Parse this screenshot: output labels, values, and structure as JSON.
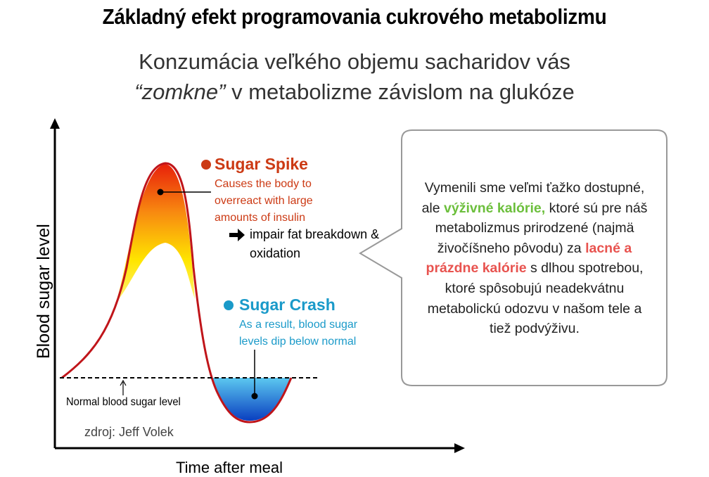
{
  "title": "Základný efekt  programovania cukrového metabolizmu",
  "subtitle": {
    "line1": "Konzumácia veľkého objemu sacharidov vás",
    "line2_quoted": "“zomkne”",
    "line2_rest": " v metabolizme závislom na glukóze"
  },
  "axes": {
    "y_label": "Blood sugar level",
    "x_label": "Time after meal"
  },
  "spike": {
    "heading": "Sugar Spike",
    "lines": [
      "Causes the body to",
      "overreact with large",
      "amounts of insulin"
    ],
    "effect_lines": [
      "impair fat breakdown &",
      "oxidation"
    ],
    "color": "#cc3a14"
  },
  "crash": {
    "heading": "Sugar Crash",
    "lines": [
      "As a result, blood sugar",
      "levels dip below normal"
    ],
    "color": "#1a9ac9"
  },
  "normal_label": "Normal blood sugar level",
  "source": "zdroj: Jeff Volek",
  "callout": {
    "lines": [
      [
        {
          "t": "Vymenili sme veľmi ťažko dostupné,",
          "s": ""
        }
      ],
      [
        {
          "t": "ale ",
          "s": ""
        },
        {
          "t": "výživné kalórie,",
          "s": "green"
        },
        {
          "t": " ktoré sú pre náš",
          "s": ""
        }
      ],
      [
        {
          "t": "metabolizmus prirodzené (najmä",
          "s": ""
        }
      ],
      [
        {
          "t": "živočíšneho pôvodu) za ",
          "s": ""
        },
        {
          "t": "lacné a",
          "s": "red"
        }
      ],
      [
        {
          "t": "prázdne kalórie",
          "s": "red"
        },
        {
          "t": " s dlhou spotrebou,",
          "s": ""
        }
      ],
      [
        {
          "t": "ktoré spôsobujú neadekvátnu",
          "s": ""
        }
      ],
      [
        {
          "t": "metabolickú odozvu v našom tele a",
          "s": ""
        }
      ],
      [
        {
          "t": "tiež podvýživu.",
          "s": ""
        }
      ]
    ]
  }
}
